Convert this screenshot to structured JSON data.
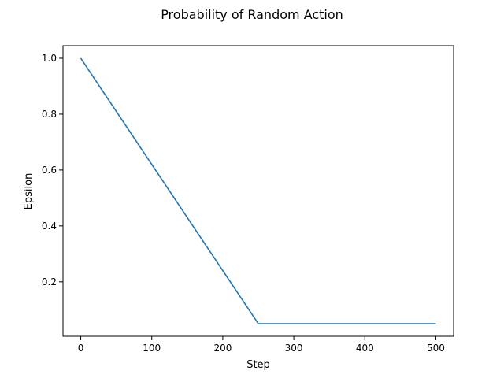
{
  "chart_data": {
    "type": "line",
    "title": "Probability of Random Action",
    "xlabel": "Step",
    "ylabel": "Epsilon",
    "xlim": [
      -25,
      525
    ],
    "ylim": [
      0.005,
      1.045
    ],
    "xticks": [
      0,
      100,
      200,
      300,
      400,
      500
    ],
    "xtick_labels": [
      "0",
      "100",
      "200",
      "300",
      "400",
      "500"
    ],
    "yticks": [
      0.2,
      0.4,
      0.6,
      0.8,
      1.0
    ],
    "ytick_labels": [
      "0.2",
      "0.4",
      "0.6",
      "0.8",
      "1.0"
    ],
    "grid": false,
    "series": [
      {
        "color": "#1f77b4",
        "x": [
          0,
          250,
          500
        ],
        "y": [
          1.0,
          0.05,
          0.05
        ]
      }
    ]
  }
}
